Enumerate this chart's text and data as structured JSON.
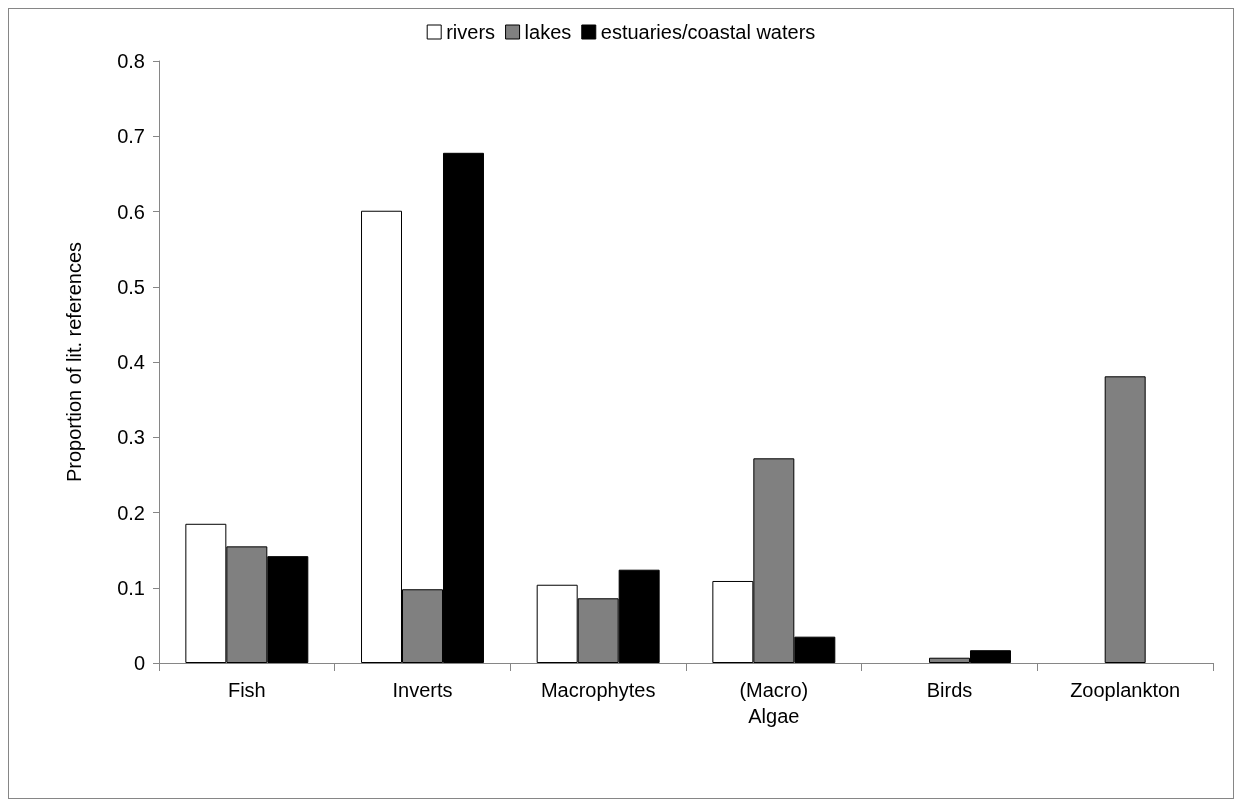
{
  "chart_data": {
    "type": "bar",
    "ylabel": "Proportion of lit. references",
    "categories": [
      "Fish",
      "Inverts",
      "Macrophytes",
      "(Macro)\nAlgae",
      "Birds",
      "Zooplankton"
    ],
    "series": [
      {
        "name": "rivers",
        "color": "#ffffff",
        "values": [
          0.185,
          0.601,
          0.104,
          0.109,
          null,
          null
        ]
      },
      {
        "name": "lakes",
        "color": "#808080",
        "values": [
          0.155,
          0.098,
          0.086,
          0.272,
          0.007,
          0.381
        ]
      },
      {
        "name": "estuaries/coastal waters",
        "color": "#000000",
        "values": [
          0.142,
          0.678,
          0.124,
          0.035,
          0.017,
          null
        ]
      }
    ],
    "ylim": [
      0,
      0.8
    ],
    "yticks": [
      0,
      0.1,
      0.2,
      0.3,
      0.4,
      0.5,
      0.6,
      0.7,
      0.8
    ],
    "grid": false,
    "legend": "top"
  }
}
